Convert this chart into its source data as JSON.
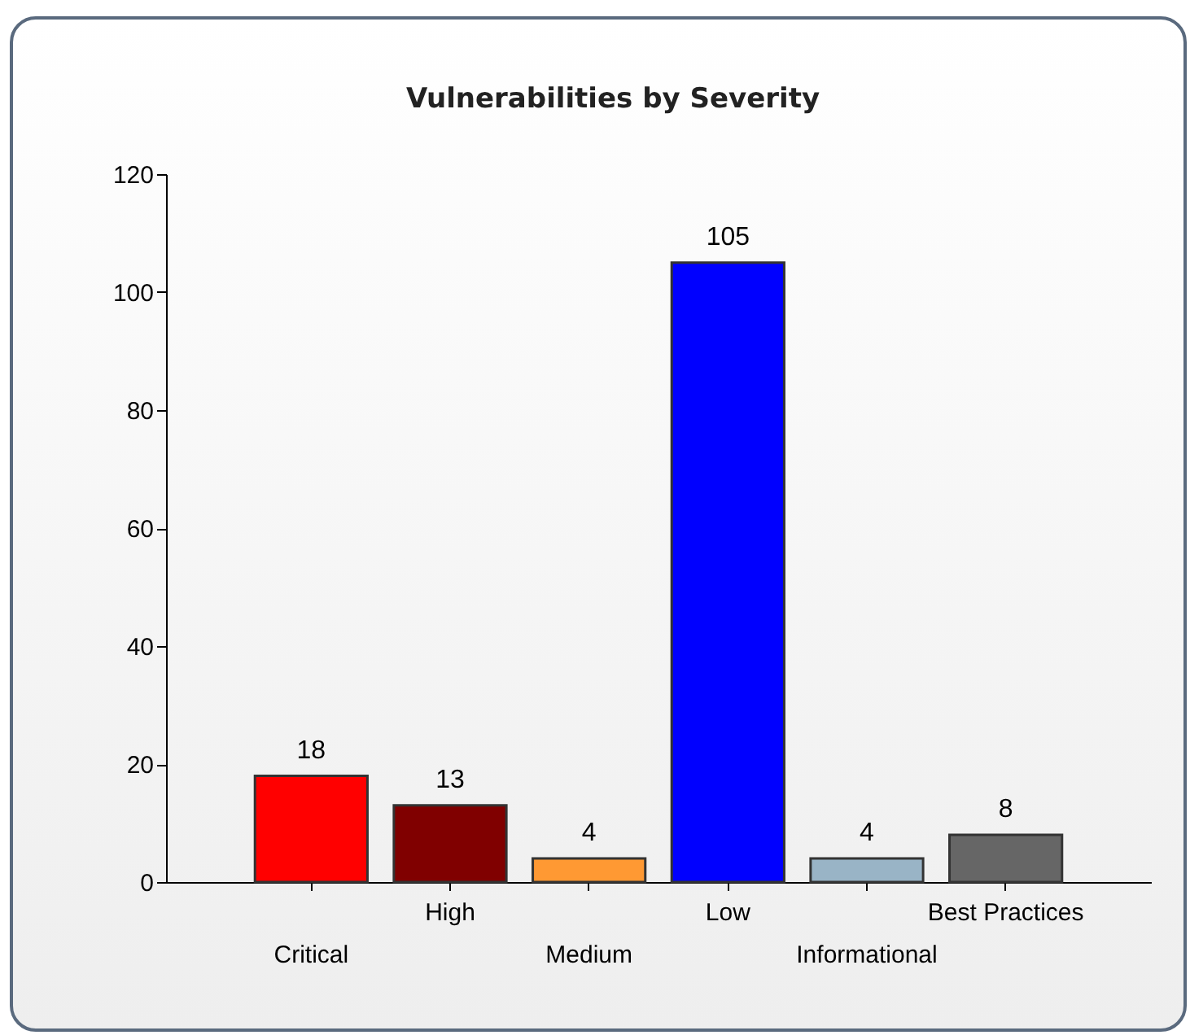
{
  "chart_data": {
    "type": "bar",
    "title": "Vulnerabilities by Severity",
    "categories": [
      "Critical",
      "High",
      "Medium",
      "Low",
      "Informational",
      "Best Practices"
    ],
    "values": [
      18,
      13,
      4,
      105,
      4,
      8
    ],
    "colors": [
      "#ff0000",
      "#800000",
      "#ff9933",
      "#0000ff",
      "#99b4c6",
      "#666666"
    ],
    "ylim": [
      0,
      120
    ],
    "yticks": [
      0,
      20,
      40,
      60,
      80,
      100,
      120
    ],
    "data_labels": true
  }
}
